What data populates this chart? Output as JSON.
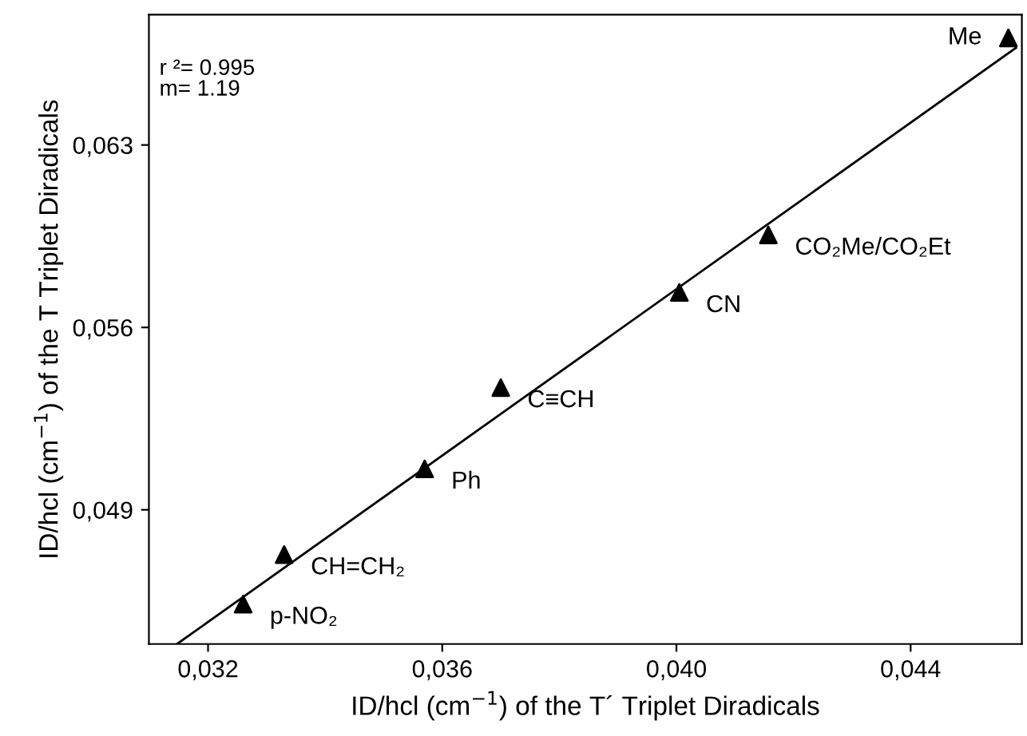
{
  "chart_data": {
    "type": "scatter",
    "xlabel": "ID/hcl (cm$^{−1}$) of the T´ Triplet Diradicals",
    "ylabel": "ID/hcl (cm$^{−1}$) of the T Triplet Diradicals",
    "series": [
      {
        "color": "#000000",
        "marker": "triangle",
        "x": [
          0.0326,
          0.0333,
          0.0357,
          0.037,
          0.04005,
          0.04157,
          0.04567
        ],
        "values": [
          0.04538,
          0.04728,
          0.05057,
          0.05369,
          0.05734,
          0.05955,
          0.06711
        ]
      },
      {
        "type": "line",
        "color": "#000000",
        "line_style": "solid",
        "x": [
          0.03147,
          0.0458
        ],
        "values": [
          0.04385,
          0.06673
        ]
      }
    ],
    "annotations": [
      {
        "text": "p-NO₂",
        "x": 0.0326,
        "y": 0.04538
      },
      {
        "text": "CH=CH₂",
        "x": 0.0333,
        "y": 0.04728
      },
      {
        "text": "Ph",
        "x": 0.0357,
        "y": 0.05057
      },
      {
        "text": "C≡CH",
        "x": 0.037,
        "y": 0.05369
      },
      {
        "text": "CN",
        "x": 0.04005,
        "y": 0.05734
      },
      {
        "text": "CO₂Me/CO₂Et",
        "x": 0.04157,
        "y": 0.05955
      },
      {
        "text": "Me",
        "x": 0.04567,
        "y": 0.06711
      },
      "r ²= 0.995\nm= 1.19"
    ],
    "xlim": [
      0.03099,
      0.0459
    ],
    "ylim": [
      0.04385,
      0.068
    ],
    "xticks": [
      {
        "value": 0.032,
        "label": "0,032"
      },
      {
        "value": 0.036,
        "label": "0,036"
      },
      {
        "value": 0.04,
        "label": "0,040"
      },
      {
        "value": 0.044,
        "label": "0,044"
      }
    ],
    "yticks": [
      {
        "value": 0.049,
        "label": "0,049"
      },
      {
        "value": 0.056,
        "label": "0,056"
      },
      {
        "value": 0.063,
        "label": "0,063"
      }
    ],
    "grid": false,
    "legend": false
  }
}
